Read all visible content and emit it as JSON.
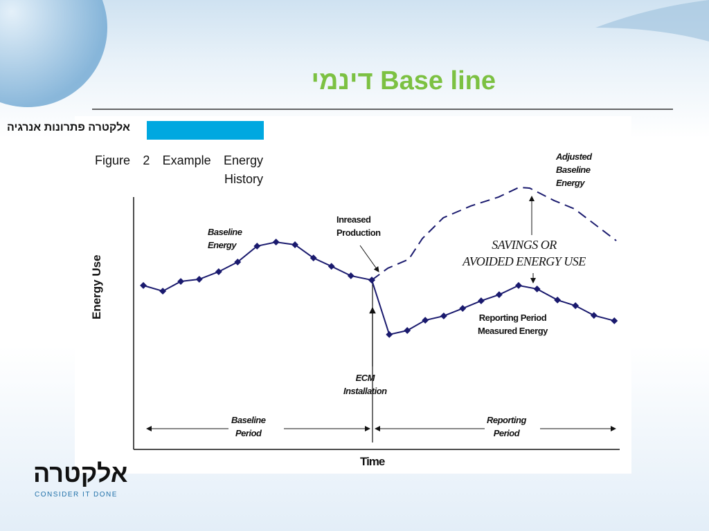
{
  "header": {
    "title": "Base line דינמי",
    "logo_top": "אלקטרה פתרונות אנרגיה",
    "logo_bottom": "אלקטרה",
    "slogan": "CONSIDER IT DONE"
  },
  "chart_data": {
    "type": "line",
    "title": "Figure 2  Example Energy History",
    "xlabel": "Time",
    "ylabel": "Energy Use",
    "xlim": [
      0,
      100
    ],
    "ylim": [
      0,
      100
    ],
    "series": [
      {
        "name": "Baseline\nEnergy",
        "color": "#1a1a6e",
        "style": "solid",
        "markers": true,
        "x": [
          2.0,
          6.0,
          9.7,
          13.5,
          17.5,
          21.4,
          25.4,
          29.3,
          33.2,
          37.0,
          40.7,
          44.7,
          49.0
        ],
        "values": [
          60.8,
          58.7,
          62.3,
          63.1,
          65.9,
          69.5,
          75.4,
          76.9,
          75.9,
          71.0,
          67.9,
          64.4,
          62.8
        ]
      },
      {
        "name": "Reporting Period\nMeasured Energy",
        "color": "#1a1a6e",
        "style": "solid",
        "markers": true,
        "x": [
          49.0,
          52.6,
          56.3,
          60.0,
          63.8,
          67.7,
          71.5,
          75.2,
          79.2,
          83.0,
          87.2,
          90.9,
          94.7,
          98.9
        ],
        "values": [
          62.8,
          42.6,
          44.1,
          47.9,
          49.5,
          52.3,
          55.1,
          57.4,
          60.8,
          59.5,
          55.4,
          53.3,
          49.7,
          47.7
        ]
      },
      {
        "name": "Adjusted\nBaseline\nEnergy",
        "color": "#1a1a6e",
        "style": "dashed",
        "markers": false,
        "x": [
          49.0,
          52.3,
          56.6,
          59.4,
          63.7,
          69.4,
          75.1,
          79.3,
          81.5,
          86.5,
          90.7,
          95.0,
          99.3
        ],
        "values": [
          62.8,
          67.2,
          70.5,
          78.2,
          85.9,
          90.3,
          93.6,
          97.2,
          96.9,
          92.3,
          89.2,
          83.3,
          77.4
        ]
      }
    ],
    "annotations": [
      "Inreased\nProduction",
      "SAVINGS OR\nAVOIDED ENERGY USE",
      "ECM\nInstallation",
      "Baseline\nPeriod",
      "Reporting\nPeriod"
    ]
  }
}
